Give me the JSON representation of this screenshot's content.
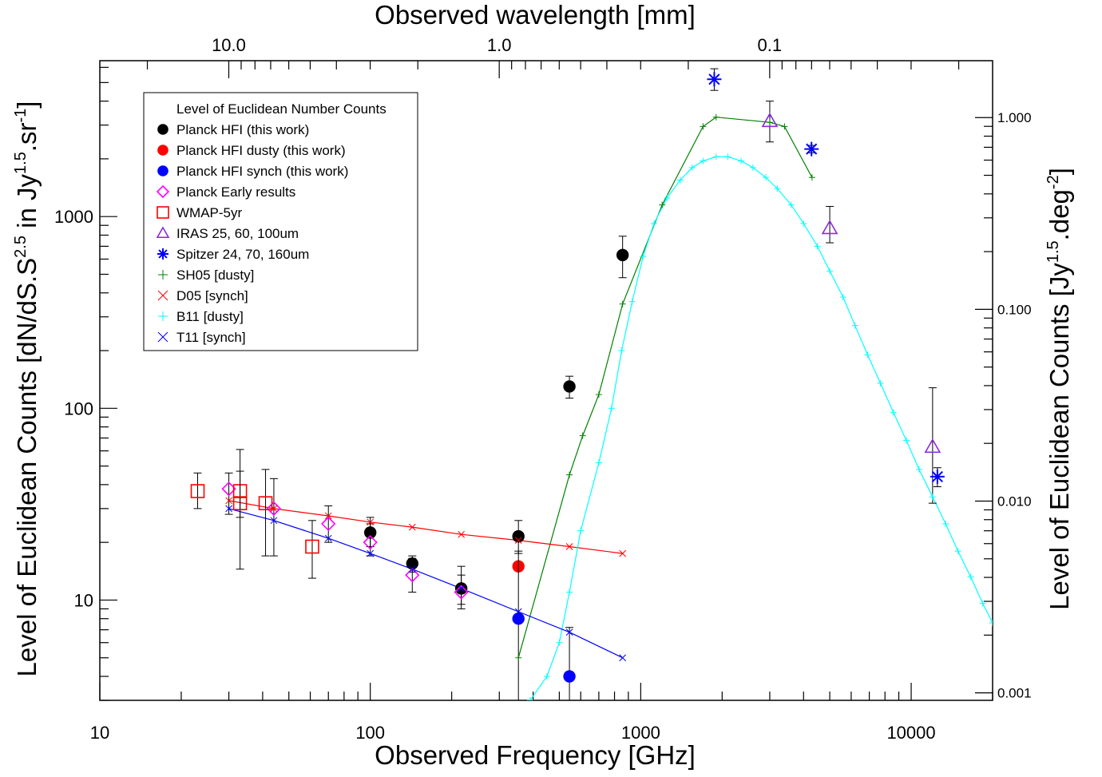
{
  "chart_data": {
    "type": "scatter",
    "xlabel": "Observed Frequency [GHz]",
    "x2label": "Observed wavelength [mm]",
    "ylabel_base": "Level of Euclidean Counts [dN/dS.S",
    "ylabel_sup1": "2.5",
    "ylabel_mid": " in Jy",
    "ylabel_sup2": "1.5",
    "ylabel_end": ".sr",
    "ylabel_sup3": "-1",
    "ylabel_close": "]",
    "y2label_base": "Level of Euclidean Counts [Jy",
    "y2label_sup1": "1.5",
    "y2label_mid": ".deg",
    "y2label_sup2": "-2",
    "y2label_close": "]",
    "xscale": "log",
    "yscale": "log",
    "xlim": [
      10,
      20000
    ],
    "ylim": [
      3,
      6500
    ],
    "xticks": [
      {
        "value": 10,
        "label": "10"
      },
      {
        "value": 100,
        "label": "100"
      },
      {
        "value": 1000,
        "label": "1000"
      },
      {
        "value": 10000,
        "label": "10000"
      }
    ],
    "yticks": [
      {
        "value": 10,
        "label": "10"
      },
      {
        "value": 100,
        "label": "100"
      },
      {
        "value": 1000,
        "label": "1000"
      }
    ],
    "x2ticks": [
      {
        "value": 10.0,
        "label": "10.0"
      },
      {
        "value": 1.0,
        "label": "1.0"
      },
      {
        "value": 0.1,
        "label": "0.1"
      }
    ],
    "y2ticks": [
      {
        "value": 0.001,
        "label": "0.001"
      },
      {
        "value": 0.01,
        "label": "0.010"
      },
      {
        "value": 0.1,
        "label": "0.100"
      },
      {
        "value": 1.0,
        "label": "1.000"
      }
    ],
    "y2_factor": 0.000304617,
    "grid": false,
    "legend_position": "top-left",
    "legend": [
      {
        "label": "Level of Euclidean Number Counts",
        "marker": "none",
        "color": "#000000"
      },
      {
        "label": "Planck HFI (this work)",
        "marker": "filled-circle",
        "color": "#000000"
      },
      {
        "label": "Planck HFI dusty (this work)",
        "marker": "filled-circle",
        "color": "#ff0000"
      },
      {
        "label": "Planck HFI synch (this work)",
        "marker": "filled-circle",
        "color": "#0000ff"
      },
      {
        "label": "Planck Early results",
        "marker": "diamond",
        "color": "#ff00ff"
      },
      {
        "label": "WMAP-5yr",
        "marker": "square",
        "color": "#ff0000"
      },
      {
        "label": "IRAS 25, 60, 100um",
        "marker": "triangle",
        "color": "#8a2be2"
      },
      {
        "label": "Spitzer 24, 70, 160um",
        "marker": "asterisk",
        "color": "#0000ff"
      },
      {
        "label": "SH05 [dusty]",
        "marker": "plus",
        "color": "#008000"
      },
      {
        "label": "D05 [synch]",
        "marker": "cross",
        "color": "#ff0000"
      },
      {
        "label": "B11 [dusty]",
        "marker": "plus",
        "color": "#00ffff"
      },
      {
        "label": "T11 [synch]",
        "marker": "cross",
        "color": "#0000ff"
      }
    ],
    "series": [
      {
        "name": "Planck HFI (this work)",
        "marker": "filled-circle",
        "color": "#000000",
        "points": [
          {
            "x": 100,
            "y": 22.5,
            "err": [
              19,
              27
            ]
          },
          {
            "x": 143,
            "y": 15.5,
            "err": [
              14,
              17
            ]
          },
          {
            "x": 217,
            "y": 11.5,
            "err": [
              9.5,
              15
            ]
          },
          {
            "x": 353,
            "y": 21.5,
            "err": [
              17.5,
              26
            ]
          },
          {
            "x": 545,
            "y": 130,
            "err": [
              113,
              147
            ]
          },
          {
            "x": 857,
            "y": 630,
            "err": [
              480,
              790
            ]
          }
        ]
      },
      {
        "name": "Planck HFI dusty (this work)",
        "marker": "filled-circle",
        "color": "#ff0000",
        "points": [
          {
            "x": 353,
            "y": 15
          }
        ]
      },
      {
        "name": "Planck HFI synch (this work)",
        "marker": "filled-circle",
        "color": "#0000ff",
        "points": [
          {
            "x": 353,
            "y": 8,
            "err": [
              3,
              18
            ]
          },
          {
            "x": 545,
            "y": 4,
            "err": [
              3,
              7.2
            ]
          }
        ]
      },
      {
        "name": "Planck Early results",
        "marker": "diamond",
        "color": "#ff00ff",
        "points": [
          {
            "x": 30,
            "y": 38,
            "err": [
              28,
              46
            ]
          },
          {
            "x": 44,
            "y": 30,
            "err": [
              17,
              43
            ]
          },
          {
            "x": 70,
            "y": 25,
            "err": [
              20,
              31
            ]
          },
          {
            "x": 100,
            "y": 20,
            "err": [
              17,
              25
            ]
          },
          {
            "x": 143,
            "y": 13.5,
            "err": [
              11,
              16.5
            ]
          },
          {
            "x": 217,
            "y": 11,
            "err": [
              9,
              13.5
            ]
          }
        ]
      },
      {
        "name": "WMAP-5yr",
        "marker": "square",
        "color": "#ff0000",
        "points": [
          {
            "x": 23,
            "y": 37,
            "err": [
              30,
              46
            ]
          },
          {
            "x": 33,
            "y": 37,
            "err": [
              27,
              47
            ]
          },
          {
            "x": 33,
            "y": 32,
            "err": [
              14.5,
              61
            ]
          },
          {
            "x": 41,
            "y": 32,
            "err": [
              17,
              48
            ]
          },
          {
            "x": 61,
            "y": 19,
            "err": [
              13,
              26
            ]
          }
        ]
      },
      {
        "name": "IRAS 25, 60, 100um",
        "marker": "triangle",
        "color": "#8a2be2",
        "points": [
          {
            "x": 3000,
            "y": 3150,
            "err": [
              2450,
              4000
            ]
          },
          {
            "x": 5000,
            "y": 870,
            "err": [
              730,
              1130
            ]
          },
          {
            "x": 12000,
            "y": 63,
            "err": [
              32,
              128
            ]
          }
        ]
      },
      {
        "name": "Spitzer 24, 70, 160um",
        "marker": "asterisk",
        "color": "#0000ff",
        "points": [
          {
            "x": 1870,
            "y": 5200,
            "err": [
              4550,
              5900
            ]
          },
          {
            "x": 4280,
            "y": 2250,
            "err": [
              2150,
              2350
            ]
          },
          {
            "x": 12500,
            "y": 44,
            "err": [
              39,
              49
            ]
          }
        ]
      },
      {
        "name": "SH05 [dusty]",
        "marker": "plus",
        "color": "#008000",
        "line": true,
        "points": [
          {
            "x": 353,
            "y": 5
          },
          {
            "x": 545,
            "y": 45
          },
          {
            "x": 610,
            "y": 72
          },
          {
            "x": 700,
            "y": 118
          },
          {
            "x": 857,
            "y": 350
          },
          {
            "x": 1200,
            "y": 1150
          },
          {
            "x": 1700,
            "y": 2950
          },
          {
            "x": 1900,
            "y": 3300
          },
          {
            "x": 3000,
            "y": 3100
          },
          {
            "x": 3400,
            "y": 2950
          },
          {
            "x": 4300,
            "y": 1600
          }
        ]
      },
      {
        "name": "D05 [synch]",
        "marker": "cross",
        "color": "#ff0000",
        "line": true,
        "points": [
          {
            "x": 30,
            "y": 33
          },
          {
            "x": 44,
            "y": 30
          },
          {
            "x": 70,
            "y": 27.5
          },
          {
            "x": 100,
            "y": 25.5
          },
          {
            "x": 143,
            "y": 24
          },
          {
            "x": 217,
            "y": 22
          },
          {
            "x": 353,
            "y": 20.5
          },
          {
            "x": 545,
            "y": 19
          },
          {
            "x": 857,
            "y": 17.5
          }
        ]
      },
      {
        "name": "B11 [dusty]",
        "marker": "plus",
        "color": "#00ffff",
        "line": true,
        "points": [
          {
            "x": 390,
            "y": 3
          },
          {
            "x": 450,
            "y": 4
          },
          {
            "x": 500,
            "y": 6
          },
          {
            "x": 545,
            "y": 11
          },
          {
            "x": 600,
            "y": 23
          },
          {
            "x": 700,
            "y": 52
          },
          {
            "x": 780,
            "y": 100
          },
          {
            "x": 850,
            "y": 200
          },
          {
            "x": 930,
            "y": 360
          },
          {
            "x": 1020,
            "y": 620
          },
          {
            "x": 1120,
            "y": 920
          },
          {
            "x": 1250,
            "y": 1250
          },
          {
            "x": 1400,
            "y": 1550
          },
          {
            "x": 1550,
            "y": 1800
          },
          {
            "x": 1700,
            "y": 1950
          },
          {
            "x": 1900,
            "y": 2050
          },
          {
            "x": 2100,
            "y": 2050
          },
          {
            "x": 2350,
            "y": 1950
          },
          {
            "x": 2600,
            "y": 1800
          },
          {
            "x": 2900,
            "y": 1600
          },
          {
            "x": 3200,
            "y": 1400
          },
          {
            "x": 3600,
            "y": 1150
          },
          {
            "x": 4000,
            "y": 920
          },
          {
            "x": 4500,
            "y": 700
          },
          {
            "x": 5000,
            "y": 520
          },
          {
            "x": 5600,
            "y": 380
          },
          {
            "x": 6200,
            "y": 270
          },
          {
            "x": 6900,
            "y": 190
          },
          {
            "x": 7700,
            "y": 135
          },
          {
            "x": 8600,
            "y": 95
          },
          {
            "x": 9600,
            "y": 68
          },
          {
            "x": 10700,
            "y": 48
          },
          {
            "x": 12000,
            "y": 34.5
          },
          {
            "x": 13400,
            "y": 25
          },
          {
            "x": 14900,
            "y": 18
          },
          {
            "x": 16600,
            "y": 13.2
          },
          {
            "x": 18400,
            "y": 9.6
          },
          {
            "x": 20000,
            "y": 7.6
          }
        ]
      },
      {
        "name": "T11 [synch]",
        "marker": "cross",
        "color": "#0000ff",
        "line": true,
        "points": [
          {
            "x": 30,
            "y": 30
          },
          {
            "x": 44,
            "y": 26
          },
          {
            "x": 70,
            "y": 21
          },
          {
            "x": 100,
            "y": 17.5
          },
          {
            "x": 143,
            "y": 14.5
          },
          {
            "x": 217,
            "y": 11.5
          },
          {
            "x": 353,
            "y": 8.7
          },
          {
            "x": 545,
            "y": 6.8
          },
          {
            "x": 857,
            "y": 5
          }
        ]
      }
    ]
  }
}
